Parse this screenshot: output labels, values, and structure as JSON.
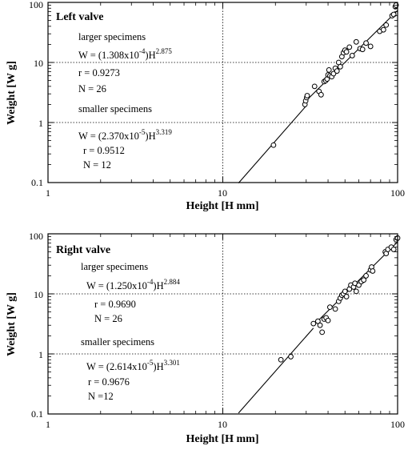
{
  "chart_data": [
    {
      "type": "scatter",
      "title": "Left valve",
      "xlabel": "Height [H mm]",
      "ylabel": "Weight [W g]",
      "xscale": "log",
      "yscale": "log",
      "xlim": [
        1,
        100
      ],
      "ylim": [
        0.1,
        100
      ],
      "x_ticks": [
        "1",
        "10",
        "100"
      ],
      "y_ticks": [
        "100",
        "10",
        "1",
        "0.1"
      ],
      "grid": "dotted lines at x=10 and y=1, 10",
      "annotations": {
        "larger_heading": "larger specimens",
        "larger_eq_main": "W = (1.308x10",
        "larger_eq_exp1": "-4",
        "larger_eq_mid": ")H",
        "larger_eq_exp2": "2.875",
        "larger_r": "r = 0.9273",
        "larger_n": "N = 26",
        "smaller_heading": "smaller specimens",
        "smaller_eq_main": "W = (2.370x10",
        "smaller_eq_exp1": "-5",
        "smaller_eq_mid": ")H",
        "smaller_eq_exp2": "3.319",
        "smaller_r": "r = 0.9512",
        "smaller_n": "N = 12"
      },
      "fit_lines": [
        {
          "a": 2.37e-05,
          "b": 3.319,
          "x_range": [
            12.3,
            30
          ]
        },
        {
          "a": 0.0001308,
          "b": 2.875,
          "x_range": [
            30,
            100
          ]
        }
      ],
      "series": [
        {
          "points": [
            [
              19.5,
              0.42
            ],
            [
              29.5,
              2.0
            ],
            [
              29.8,
              2.3
            ],
            [
              30.2,
              2.6
            ],
            [
              30.4,
              2.8
            ],
            [
              33.5,
              4.0
            ],
            [
              35.5,
              3.3
            ],
            [
              36.5,
              2.9
            ],
            [
              38,
              4.8
            ],
            [
              38.8,
              5.0
            ],
            [
              39.5,
              5.3
            ],
            [
              40,
              6.2
            ],
            [
              40.5,
              7.5
            ],
            [
              41,
              6.0
            ],
            [
              42,
              5.8
            ],
            [
              43,
              6.5
            ],
            [
              44,
              8.0
            ],
            [
              45,
              7.2
            ],
            [
              46,
              10.0
            ],
            [
              47,
              8.5
            ],
            [
              48,
              12.5
            ],
            [
              49,
              14.5
            ],
            [
              50,
              16.0
            ],
            [
              51,
              15.0
            ],
            [
              53,
              18.0
            ],
            [
              55,
              13.0
            ],
            [
              58,
              22.0
            ],
            [
              61,
              17.0
            ],
            [
              63,
              16.5
            ],
            [
              66,
              21.0
            ],
            [
              70,
              18.5
            ],
            [
              79,
              33.0
            ],
            [
              83,
              35.0
            ],
            [
              86,
              42.0
            ],
            [
              93,
              60.0
            ],
            [
              95,
              63.0
            ],
            [
              97,
              85.0
            ],
            [
              98,
              90.0
            ]
          ]
        }
      ]
    },
    {
      "type": "scatter",
      "title": "Right valve",
      "xlabel": "Height [H mm]",
      "ylabel": "Weight [W g]",
      "xscale": "log",
      "yscale": "log",
      "xlim": [
        1,
        100
      ],
      "ylim": [
        0.1,
        100
      ],
      "x_ticks": [
        "1",
        "10",
        "100"
      ],
      "y_ticks": [
        "100",
        "10",
        "1",
        "0.1"
      ],
      "grid": "dotted lines at x=10 and y=1, 10",
      "annotations": {
        "larger_heading": "larger specimens",
        "larger_eq_main": "W = (1.250x10",
        "larger_eq_exp1": "-4",
        "larger_eq_mid": ")H",
        "larger_eq_exp2": "2.884",
        "larger_r": "r = 0.9690",
        "larger_n": "N = 26",
        "smaller_heading": "smaller specimens",
        "smaller_eq_main": "W = (2.614x10",
        "smaller_eq_exp1": "-5",
        "smaller_eq_mid": ")H",
        "smaller_eq_exp2": "3.301",
        "smaller_r": "r = 0.9676",
        "smaller_n": "N =12"
      },
      "fit_lines": [
        {
          "a": 2.614e-05,
          "b": 3.301,
          "x_range": [
            12.3,
            33
          ]
        },
        {
          "a": 0.000125,
          "b": 2.884,
          "x_range": [
            33,
            100
          ]
        }
      ],
      "series": [
        {
          "points": [
            [
              21.5,
              0.8
            ],
            [
              24.5,
              0.9
            ],
            [
              33,
              3.2
            ],
            [
              35,
              3.5
            ],
            [
              36,
              3.0
            ],
            [
              37,
              2.3
            ],
            [
              38,
              3.8
            ],
            [
              39,
              4.0
            ],
            [
              40,
              3.6
            ],
            [
              41,
              6.0
            ],
            [
              44,
              5.6
            ],
            [
              46,
              7.5
            ],
            [
              47,
              8.5
            ],
            [
              48,
              9.5
            ],
            [
              49,
              10.0
            ],
            [
              50,
              11.0
            ],
            [
              51,
              9.0
            ],
            [
              53,
              12.0
            ],
            [
              54,
              14.0
            ],
            [
              56,
              13.0
            ],
            [
              57,
              15.0
            ],
            [
              58,
              11.0
            ],
            [
              60,
              14.0
            ],
            [
              62,
              16.0
            ],
            [
              64,
              17.0
            ],
            [
              66,
              20.0
            ],
            [
              70,
              25.0
            ],
            [
              71,
              28.0
            ],
            [
              72,
              24.0
            ],
            [
              85,
              50.0
            ],
            [
              86,
              47.0
            ],
            [
              88,
              55.0
            ],
            [
              92,
              60.0
            ],
            [
              95,
              55.0
            ],
            [
              98,
              80.0
            ],
            [
              100,
              85.0
            ]
          ]
        }
      ]
    }
  ]
}
